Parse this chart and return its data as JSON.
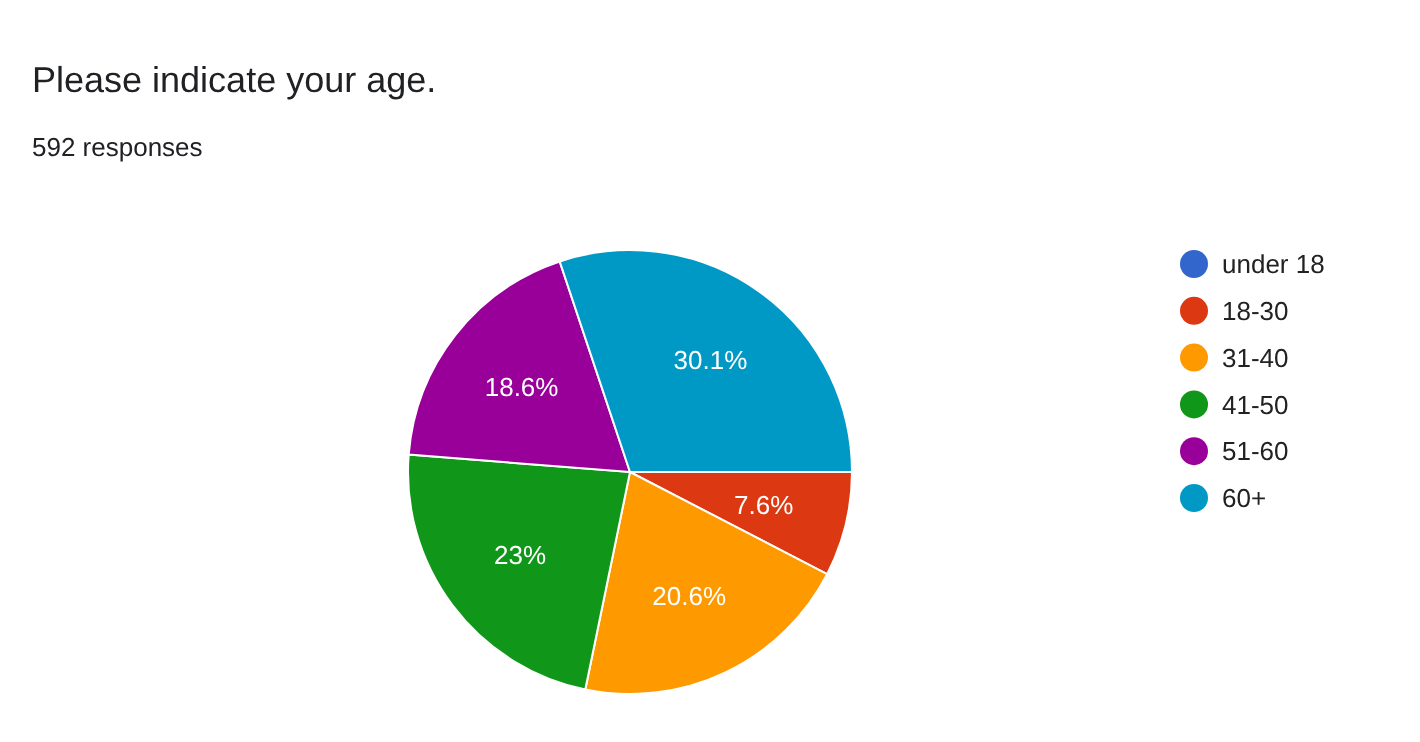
{
  "chart_data": {
    "type": "pie",
    "title": "Please indicate your age.",
    "subtitle": "592 responses",
    "categories": [
      "under 18",
      "18-30",
      "31-40",
      "41-50",
      "51-60",
      "60+"
    ],
    "values": [
      0,
      7.6,
      20.6,
      23,
      18.6,
      30.1
    ],
    "colors": [
      "#3366cc",
      "#dc3912",
      "#ff9900",
      "#109618",
      "#990099",
      "#0099c6"
    ],
    "value_labels": [
      null,
      "7.6%",
      "20.6%",
      "23%",
      "18.6%",
      "30.1%"
    ],
    "legend": "right"
  }
}
